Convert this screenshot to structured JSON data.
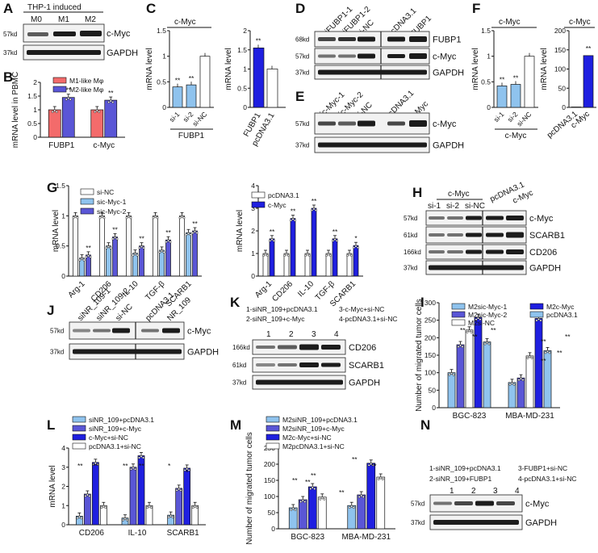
{
  "colors": {
    "red": "#f36b6b",
    "blue": "#1f1fe0",
    "mid": "#5a56d6",
    "light": "#8fc3ee",
    "white": "#ffffff",
    "lightpurple": "#b7b0ec"
  },
  "panel_letters": [
    "A",
    "B",
    "C",
    "D",
    "E",
    "F",
    "G",
    "H",
    "I",
    "J",
    "K",
    "L",
    "M",
    "N"
  ],
  "kd": {
    "k57": "57kd",
    "k37": "37kd",
    "k68": "68kd",
    "k61": "61kd",
    "k166": "166kd"
  },
  "proteins": {
    "cmyc": "c-Myc",
    "gapdh": "GAPDH",
    "fubp1": "FUBP1",
    "scarb1": "SCARB1",
    "cd206": "CD206"
  },
  "panelA": {
    "title": "THP-1 induced",
    "lanes": [
      "M0",
      "M1",
      "M2"
    ]
  },
  "panelB": {
    "ylabel": "mRNA level in PBMC",
    "legend": [
      "M1-like Mφ",
      "M2-like Mφ"
    ],
    "chart_data": {
      "type": "bar",
      "categories": [
        "FUBP1",
        "c-Myc"
      ],
      "series": [
        {
          "name": "M1-like Mφ",
          "values": [
            1.0,
            1.0
          ]
        },
        {
          "name": "M2-like Mφ",
          "values": [
            1.45,
            1.35
          ]
        }
      ],
      "ylim": [
        0,
        2
      ],
      "ticks": [
        0,
        0.5,
        1.0,
        1.5,
        2.0
      ],
      "sig": [
        "**",
        "**"
      ]
    }
  },
  "panelC": {
    "title": "c-Myc",
    "ylabel": "mRNA level",
    "group_label": "FUBP1",
    "chart_data": [
      {
        "type": "bar",
        "categories": [
          "si-1",
          "si-2",
          "si-NC"
        ],
        "values": [
          0.4,
          0.44,
          1.0
        ],
        "ylim": [
          0,
          1.5
        ],
        "ticks": [
          0,
          0.5,
          1.0,
          1.5
        ],
        "sig": [
          "**",
          "**",
          ""
        ]
      },
      {
        "type": "bar",
        "categories": [
          "FUBP1",
          "pcDNA3.1"
        ],
        "values": [
          1.55,
          1.0
        ],
        "ylim": [
          0,
          2
        ],
        "ticks": [
          0,
          0.5,
          1.0,
          1.5,
          2.0
        ],
        "sig": [
          "**",
          ""
        ]
      }
    ]
  },
  "panelD": {
    "lanes": [
      "siFUBP1-1",
      "siFUBP1-2",
      "si-NC",
      "pcDNA3.1",
      "FUBP1"
    ]
  },
  "panelE": {
    "lanes": [
      "sic-Myc-1",
      "sic-Myc-2",
      "si-NC",
      "pcDNA3.1",
      "c-Myc"
    ]
  },
  "panelF": {
    "title": "c-Myc",
    "ylabel": "mRNA level",
    "group_label": "c-Myc",
    "chart_data": [
      {
        "type": "bar",
        "categories": [
          "si-1",
          "si-2",
          "si-NC"
        ],
        "values": [
          0.42,
          0.45,
          1.0
        ],
        "ylim": [
          0,
          1.5
        ],
        "ticks": [
          0,
          0.5,
          1.0,
          1.5
        ],
        "sig": [
          "**",
          "**",
          ""
        ]
      },
      {
        "type": "bar",
        "categories": [
          "pcDNA3.1",
          "c-Myc"
        ],
        "values": [
          1,
          135
        ],
        "ylim": [
          0,
          200
        ],
        "ticks": [
          0,
          50,
          100,
          150,
          200
        ],
        "sig": [
          "",
          "**"
        ]
      }
    ]
  },
  "panelG": {
    "ylabel": "mRNA level",
    "legend1": [
      "si-NC",
      "sic-Myc-1",
      "sic-Myc-2"
    ],
    "legend2": [
      "pcDNA3.1",
      "c-Myc"
    ],
    "chart_data": [
      {
        "type": "bar",
        "categories": [
          "Arg-1",
          "CD206",
          "IL-10",
          "TGF-β",
          "SCARB1"
        ],
        "series": [
          {
            "name": "si-NC",
            "values": [
              1,
              1,
              1,
              1,
              1
            ]
          },
          {
            "name": "sic-Myc-1",
            "values": [
              0.3,
              0.5,
              0.38,
              0.43,
              0.72
            ]
          },
          {
            "name": "sic-Myc-2",
            "values": [
              0.35,
              0.65,
              0.5,
              0.6,
              0.75
            ]
          }
        ],
        "ylim": [
          0,
          1.5
        ],
        "ticks": [
          0,
          0.5,
          1.0,
          1.5
        ],
        "sig": [
          "**",
          "**",
          "**",
          "**",
          "**"
        ]
      },
      {
        "type": "bar",
        "categories": [
          "Arg-1",
          "CD206",
          "IL-10",
          "TGF-β",
          "SCARB1"
        ],
        "series": [
          {
            "name": "pcDNA3.1",
            "values": [
              1,
              1,
              1,
              1,
              1
            ]
          },
          {
            "name": "c-Myc",
            "values": [
              1.65,
              2.55,
              3.0,
              1.65,
              1.35
            ]
          }
        ],
        "ylim": [
          0,
          4
        ],
        "ticks": [
          0,
          1,
          2,
          3,
          4
        ],
        "sig": [
          "**",
          "**",
          "**",
          "**",
          "*"
        ]
      }
    ]
  },
  "panelH": {
    "group": "c-Myc",
    "lanes": [
      "si-1",
      "si-2",
      "si-NC",
      "pcDNA3.1",
      "c-Myc"
    ]
  },
  "panelI": {
    "ylabel": "Number of migrated tumor cells",
    "legend": [
      "M2sic-Myc-1",
      "M2sic-Myc-2",
      "M2si-NC",
      "M2c-Myc",
      "pcDNA3.1"
    ],
    "chart_data": {
      "type": "bar",
      "categories": [
        "BGC-823",
        "MBA-MD-231"
      ],
      "series": [
        {
          "name": "M2sic-Myc-1",
          "values": [
            100,
            72
          ]
        },
        {
          "name": "M2sic-Myc-2",
          "values": [
            180,
            85
          ]
        },
        {
          "name": "M2si-NC",
          "values": [
            222,
            148
          ]
        },
        {
          "name": "M2c-Myc",
          "values": [
            258,
            255
          ]
        },
        {
          "name": "pcDNA3.1",
          "values": [
            188,
            163
          ]
        }
      ],
      "ylim": [
        0,
        300
      ],
      "ticks": [
        0,
        50,
        100,
        150,
        200,
        250,
        300
      ],
      "sig": "**"
    }
  },
  "panelJ": {
    "lanes": [
      "siNR_109-1",
      "siNR_109-2",
      "si-NC",
      "pcDNA3.1",
      "NR_109"
    ]
  },
  "panelK": {
    "legend": [
      "1-siNR_109+pcDNA3.1",
      "2-siNR_109+c-Myc",
      "3-c-Myc+si-NC",
      "4-pcDNA3.1+si-NC"
    ],
    "lanes": [
      "1",
      "2",
      "3",
      "4"
    ]
  },
  "panelL": {
    "ylabel": "mRNA level",
    "legend": [
      "siNR_109+pcDNA3.1",
      "siNR_109+c-Myc",
      "c-Myc+si-NC",
      "pcDNA3.1+si-NC"
    ],
    "chart_data": {
      "type": "bar",
      "categories": [
        "CD206",
        "IL-10",
        "SCARB1"
      ],
      "series": [
        {
          "name": "siNR_109+pcDNA3.1",
          "values": [
            0.45,
            0.35,
            0.5
          ]
        },
        {
          "name": "siNR_109+c-Myc",
          "values": [
            1.6,
            3.0,
            1.9
          ]
        },
        {
          "name": "c-Myc+si-NC",
          "values": [
            3.25,
            3.6,
            2.95
          ]
        },
        {
          "name": "pcDNA3.1+si-NC",
          "values": [
            1,
            1,
            1
          ]
        }
      ],
      "ylim": [
        0,
        4
      ],
      "ticks": [
        0,
        1,
        2,
        3,
        4
      ],
      "sig": [
        "**",
        "**",
        "*"
      ]
    }
  },
  "panelM": {
    "ylabel": "Number of migrated tumor cells",
    "legend": [
      "M2siNR_109+pcDNA3.1",
      "M2siNR_109+c-Myc",
      "M2c-Myc+si-NC",
      "M2pcDNA3.1+si-NC"
    ],
    "chart_data": {
      "type": "bar",
      "categories": [
        "BGC-823",
        "MBA-MD-231"
      ],
      "series": [
        {
          "name": "M2siNR_109+pcDNA3.1",
          "values": [
            65,
            72
          ]
        },
        {
          "name": "M2siNR_109+c-Myc",
          "values": [
            90,
            105
          ]
        },
        {
          "name": "M2c-Myc+si-NC",
          "values": [
            130,
            203
          ]
        },
        {
          "name": "M2pcDNA3.1+si-NC",
          "values": [
            98,
            160
          ]
        }
      ],
      "ylim": [
        0,
        250
      ],
      "ticks": [
        0,
        50,
        100,
        150,
        200,
        250
      ],
      "sig": "**"
    }
  },
  "panelN": {
    "legend": [
      "1-siNR_109+pcDNA3.1",
      "2-siNR_109+FUBP1",
      "3-FUBP1+si-NC",
      "4-pcDNA3.1+si-NC"
    ],
    "lanes": [
      "1",
      "2",
      "3",
      "4"
    ]
  }
}
